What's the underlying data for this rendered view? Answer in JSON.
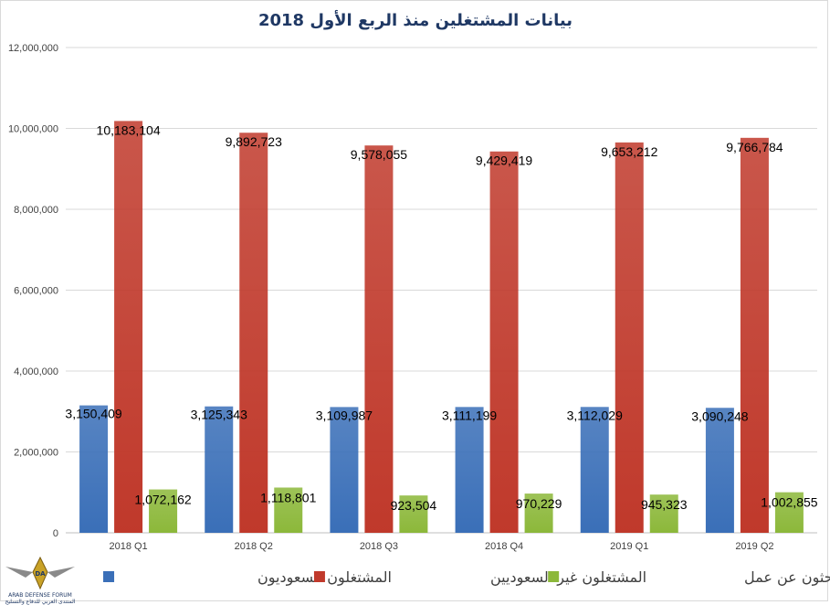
{
  "chart_data": {
    "type": "bar",
    "title": "بيانات المشتغلين منذ الربع الأول 2018",
    "xlabel": "",
    "ylabel": "",
    "categories": [
      "2018 Q1",
      "2018 Q2",
      "2018 Q3",
      "2018 Q4",
      "2019 Q1",
      "2019 Q2"
    ],
    "series": [
      {
        "name": "المشتغلون السعوديون",
        "color": "#3a6fb8",
        "values": [
          3150409,
          3125343,
          3109987,
          3111199,
          3112029,
          3090248
        ],
        "labels": [
          "3,150,409",
          "3,125,343",
          "3,109,987",
          "3,111,199",
          "3,112,029",
          "3,090,248"
        ]
      },
      {
        "name": "المشتغلون غير السعوديين",
        "color": "#c0392b",
        "values": [
          10183104,
          9892723,
          9578055,
          9429419,
          9653212,
          9766784
        ],
        "labels": [
          "10,183,104",
          "9,892,723",
          "9,578,055",
          "9,429,419",
          "9,653,212",
          "9,766,784"
        ]
      },
      {
        "name": "السعوديون الباحثون عن عمل",
        "color": "#8cb83a",
        "values": [
          1072162,
          1118801,
          923504,
          970229,
          945323,
          1002855
        ],
        "labels": [
          "1,072,162",
          "1,118,801",
          "923,504",
          "970,229",
          "945,323",
          "1,002,855"
        ]
      }
    ],
    "ylim": [
      0,
      12000000
    ],
    "yticks": [
      0,
      2000000,
      4000000,
      6000000,
      8000000,
      10000000,
      12000000
    ],
    "ytick_labels": [
      "0",
      "2,000,000",
      "4,000,000",
      "6,000,000",
      "8,000,000",
      "10,000,000",
      "12,000,000"
    ],
    "grid": true,
    "legend_position": "bottom"
  },
  "logo": {
    "name": "ARAB DEFENSE FORUM",
    "subtitle": "المنتدى العربي للدفاع والتسليح",
    "initials": "DA"
  }
}
